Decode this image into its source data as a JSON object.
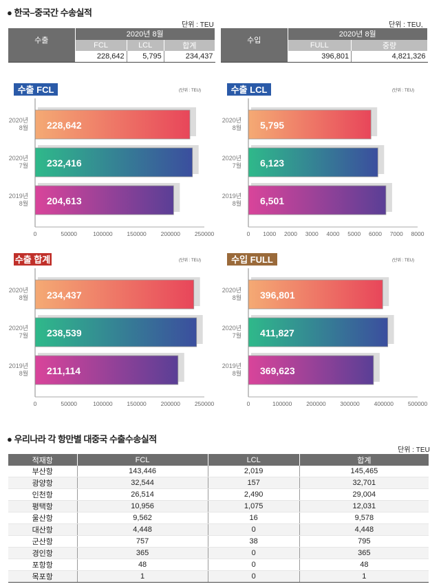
{
  "section1": {
    "title": "● 한국–중국간 수송실적",
    "export_table": {
      "unit": "단위 : TEU",
      "row_label": "수출",
      "period": "2020년 8월",
      "headers": [
        "FCL",
        "LCL",
        "합계"
      ],
      "values": [
        "228,642",
        "5,795",
        "234,437"
      ]
    },
    "import_table": {
      "unit": "단위 : TEU, 톤",
      "row_label": "수입",
      "period": "2020년 8월",
      "headers": [
        "FULL",
        "중량"
      ],
      "values": [
        "396,801",
        "4,821,326"
      ]
    }
  },
  "chart_data": [
    {
      "type": "bar",
      "title": "수출 FCL",
      "unit": "(단위 : TEU)",
      "categories": [
        "2020년 8월",
        "2020년 7월",
        "2019년 8월"
      ],
      "values": [
        228642,
        232416,
        204613
      ],
      "labels": [
        "228,642",
        "232,416",
        "204,613"
      ],
      "xlim": [
        0,
        250000
      ],
      "ticks": [
        "0",
        "50000",
        "100000",
        "150000",
        "200000",
        "250000"
      ],
      "badge_color": "#2a5aa8"
    },
    {
      "type": "bar",
      "title": "수출 LCL",
      "unit": "(단위 : TEU)",
      "categories": [
        "2020년 8월",
        "2020년 7월",
        "2019년 8월"
      ],
      "values": [
        5795,
        6123,
        6501
      ],
      "labels": [
        "5,795",
        "6,123",
        "6,501"
      ],
      "xlim": [
        0,
        8000
      ],
      "ticks": [
        "0",
        "1000",
        "2000",
        "3000",
        "4000",
        "5000",
        "6000",
        "7000",
        "8000"
      ],
      "badge_color": "#2a5aa8"
    },
    {
      "type": "bar",
      "title": "수출 합계",
      "unit": "(단위 : TEU)",
      "categories": [
        "2020년 8월",
        "2020년 7월",
        "2019년 8월"
      ],
      "values": [
        234437,
        238539,
        211114
      ],
      "labels": [
        "234,437",
        "238,539",
        "211,114"
      ],
      "xlim": [
        0,
        250000
      ],
      "ticks": [
        "0",
        "50000",
        "100000",
        "150000",
        "200000",
        "250000"
      ],
      "badge_color": "#c0302a"
    },
    {
      "type": "bar",
      "title": "수입 FULL",
      "unit": "(단위 : TEU)",
      "categories": [
        "2020년 8월",
        "2020년 7월",
        "2019년 8월"
      ],
      "values": [
        396801,
        411827,
        369623
      ],
      "labels": [
        "396,801",
        "411,827",
        "369,623"
      ],
      "xlim": [
        0,
        500000
      ],
      "ticks": [
        "0",
        "100000",
        "200000",
        "300000",
        "400000",
        "500000"
      ],
      "badge_color": "#9a6a3a"
    }
  ],
  "section2": {
    "title": "● 우리나라 각 항만별 대중국 수출수송실적",
    "unit": "단위 : TEU",
    "headers": [
      "적재항",
      "FCL",
      "LCL",
      "합계"
    ],
    "rows": [
      [
        "부산항",
        "143,446",
        "2,019",
        "145,465"
      ],
      [
        "광양항",
        "32,544",
        "157",
        "32,701"
      ],
      [
        "인천항",
        "26,514",
        "2,490",
        "29,004"
      ],
      [
        "평택항",
        "10,956",
        "1,075",
        "12,031"
      ],
      [
        "울산항",
        "9,562",
        "16",
        "9,578"
      ],
      [
        "대산항",
        "4,448",
        "0",
        "4,448"
      ],
      [
        "군산항",
        "757",
        "38",
        "795"
      ],
      [
        "경인항",
        "365",
        "0",
        "365"
      ],
      [
        "포항항",
        "48",
        "0",
        "48"
      ],
      [
        "목포항",
        "1",
        "0",
        "1"
      ]
    ]
  }
}
